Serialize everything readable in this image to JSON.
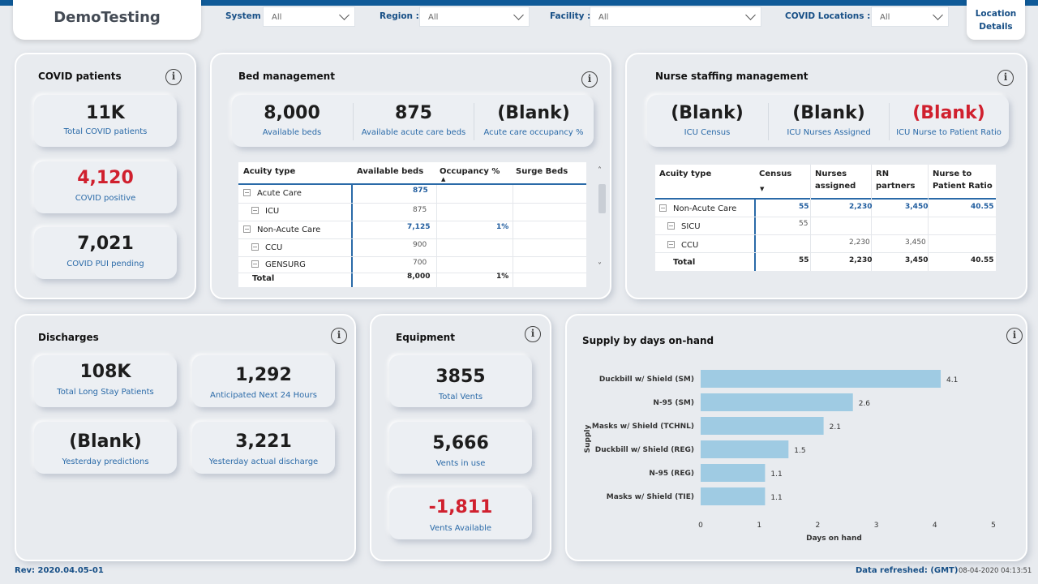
{
  "app_title": "DemoTesting",
  "filters": [
    {
      "label": "System :",
      "value": "All"
    },
    {
      "label": "Region :",
      "value": "All"
    },
    {
      "label": "Facility :",
      "value": "All"
    },
    {
      "label": "COVID Locations :",
      "value": "All"
    }
  ],
  "location_tab": {
    "line1": "Location",
    "line2": "Details"
  },
  "covid": {
    "title": "COVID patients",
    "cards": [
      {
        "value": "11K",
        "label": "Total COVID patients"
      },
      {
        "value": "4,120",
        "label": "COVID positive"
      },
      {
        "value": "7,021",
        "label": "COVID PUI pending"
      }
    ]
  },
  "beds": {
    "title": "Bed management",
    "stats": [
      {
        "value": "8,000",
        "label": "Available beds"
      },
      {
        "value": "875",
        "label": "Available acute care beds"
      },
      {
        "value": "(Blank)",
        "label": "Acute care occupancy %"
      }
    ],
    "columns": [
      "Acuity type",
      "Available beds",
      "Occupancy %",
      "Surge Beds"
    ],
    "rows": [
      {
        "name": "Acute Care",
        "beds": "875",
        "occ": ""
      },
      {
        "name": "ICU",
        "beds": "875",
        "occ": ""
      },
      {
        "name": "Non-Acute Care",
        "beds": "7,125",
        "occ": "1%"
      },
      {
        "name": "CCU",
        "beds": "900",
        "occ": ""
      },
      {
        "name": "GENSURG",
        "beds": "700",
        "occ": ""
      }
    ],
    "total": {
      "name": "Total",
      "beds": "8,000",
      "occ": "1%"
    }
  },
  "nurse": {
    "title": "Nurse staffing management",
    "stats": [
      {
        "value": "(Blank)",
        "label": "ICU Census"
      },
      {
        "value": "(Blank)",
        "label": "ICU Nurses Assigned"
      },
      {
        "value": "(Blank)",
        "label": "ICU Nurse to Patient Ratio"
      }
    ],
    "columns": [
      "Acuity type",
      "Census",
      "Nurses",
      "assigned",
      "RN",
      "partners",
      "Nurse to",
      "Patient Ratio"
    ],
    "rows": [
      {
        "name": "Non-Acute Care",
        "census": "55",
        "nurses": "2,230",
        "rn": "3,450",
        "ratio": "40.55"
      },
      {
        "name": "SICU",
        "census": "55",
        "nurses": "",
        "rn": "",
        "ratio": ""
      },
      {
        "name": "CCU",
        "census": "",
        "nurses": "2,230",
        "rn": "3,450",
        "ratio": ""
      }
    ],
    "total": {
      "name": "Total",
      "census": "55",
      "nurses": "2,230",
      "rn": "3,450",
      "ratio": "40.55"
    }
  },
  "discharges": {
    "title": "Discharges",
    "cards": [
      {
        "value": "108K",
        "label": "Total Long Stay Patients"
      },
      {
        "value": "1,292",
        "label": "Anticipated Next 24 Hours"
      },
      {
        "value": "(Blank)",
        "label": "Yesterday predictions"
      },
      {
        "value": "3,221",
        "label": "Yesterday actual discharge"
      }
    ]
  },
  "equipment": {
    "title": "Equipment",
    "cards": [
      {
        "value": "3855",
        "label": "Total Vents"
      },
      {
        "value": "5,666",
        "label": "Vents in use"
      },
      {
        "value": "-1,811",
        "label": "Vents Available"
      }
    ]
  },
  "supply": {
    "title": "Supply by days on-hand"
  },
  "chart_data": {
    "type": "bar",
    "orientation": "horizontal",
    "title": "Supply by days on-hand",
    "categories": [
      "Duckbill w/ Shield (SM)",
      "N-95 (SM)",
      "Masks w/ Shield (TCHNL)",
      "Duckbill w/ Shield (REG)",
      "N-95 (REG)",
      "Masks w/ Shield (TIE)"
    ],
    "values": [
      4.1,
      2.6,
      2.1,
      1.5,
      1.1,
      1.1
    ],
    "value_labels": [
      "4.1",
      "2.6",
      "2.1",
      "1.5",
      "1.1",
      "1.1"
    ],
    "xlabel": "Days on hand",
    "ylabel": "Supply",
    "xlim": [
      0,
      5
    ],
    "xticks": [
      "0",
      "1",
      "2",
      "3",
      "4",
      "5"
    ],
    "bar_color": "#9fcbe3"
  },
  "footer": {
    "rev": "Rev: 2020.04.05-01",
    "refreshed_label": "Data refreshed: (GMT)",
    "refreshed_value": "08-04-2020 04:13:51"
  },
  "colors": {
    "accent": "#0f5a98",
    "label_blue": "#2a6aa8",
    "negative_red": "#d0202e"
  }
}
